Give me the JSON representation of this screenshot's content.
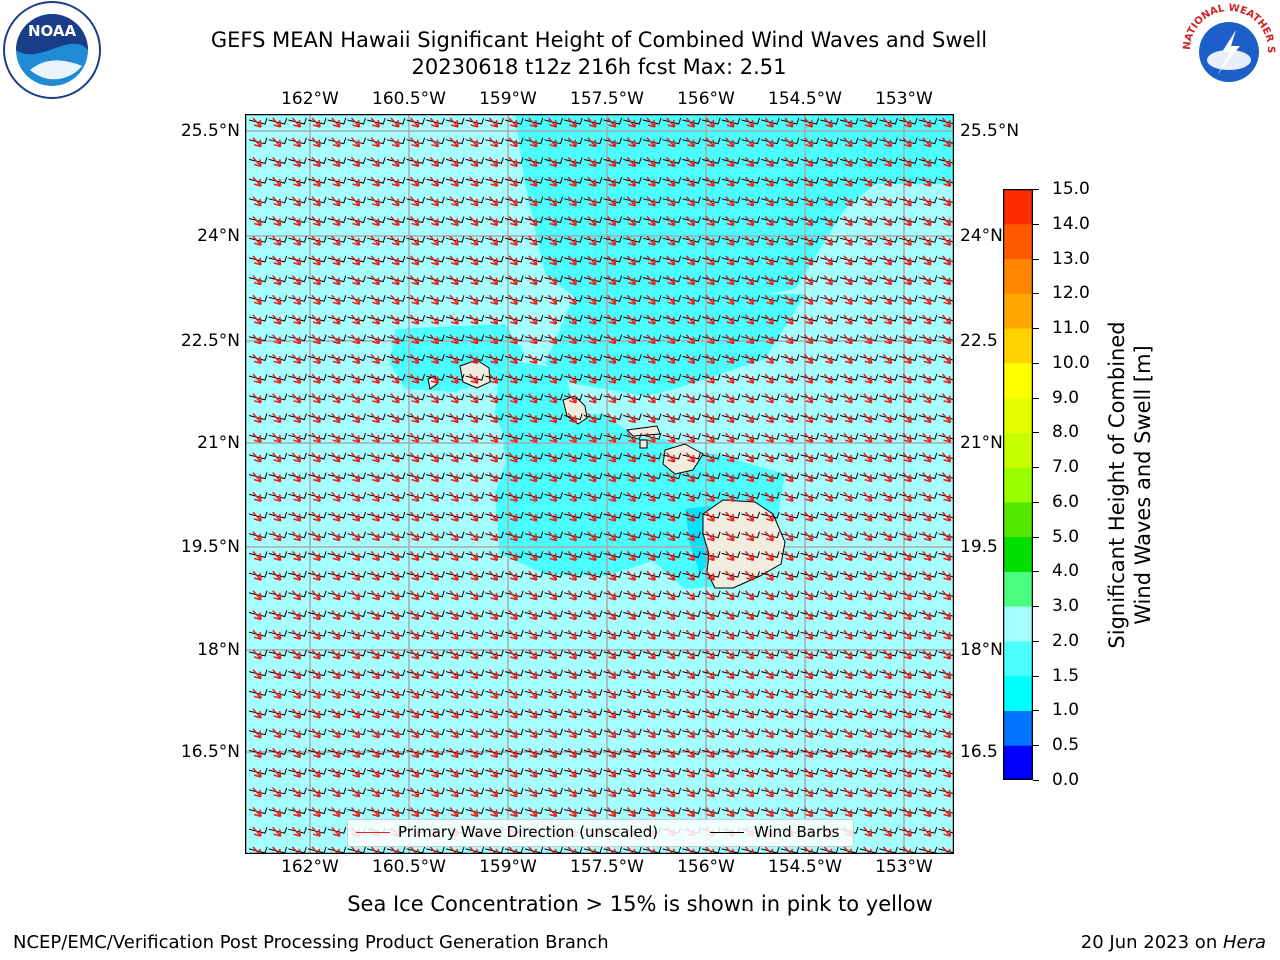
{
  "title": {
    "line1": "GEFS MEAN Hawaii Significant Height of Combined Wind Waves and Swell",
    "line2": "20230618 t12z 216h fcst   Max: 2.51"
  },
  "map": {
    "lon_labels": [
      "162°W",
      "160.5°W",
      "159°W",
      "157.5°W",
      "156°W",
      "154.5°W",
      "153°W"
    ],
    "lat_labels": [
      "25.5°N",
      "24°N",
      "22.5°N",
      "21°N",
      "19.5°N",
      "18°N",
      "16.5°N"
    ],
    "lat_labels_right": [
      "25.5°N",
      "24°N",
      "22.5",
      "21°N",
      "19.5",
      "18°N",
      "16.5"
    ],
    "legend": {
      "wave_direction": "Primary Wave Direction (unscaled)",
      "wind_barbs": "Wind Barbs"
    },
    "colors": {
      "wave_arrow": "#e8201e",
      "wind_barb": "#000000",
      "land": "#f0ede0",
      "gridline": "#aaaaaa"
    }
  },
  "colorbar": {
    "label": "Significant Height of Combined\nWind Waves and Swell [m]",
    "ticks": [
      "0.0",
      "0.5",
      "1.0",
      "1.5",
      "2.0",
      "3.0",
      "4.0",
      "5.0",
      "6.0",
      "7.0",
      "8.0",
      "9.0",
      "10.0",
      "11.0",
      "12.0",
      "13.0",
      "14.0",
      "15.0"
    ],
    "colors": [
      "#0000ff",
      "#0073ff",
      "#00ffff",
      "#4cffff",
      "#a6ffff",
      "#4cff80",
      "#00e000",
      "#55e800",
      "#99ff00",
      "#c8ff00",
      "#e6ff00",
      "#ffff00",
      "#ffd200",
      "#ffa500",
      "#ff8700",
      "#ff5a00",
      "#ff2d00",
      "#ff0000"
    ]
  },
  "notes": {
    "sea_ice": "Sea Ice Concentration > 15% is shown in pink to yellow"
  },
  "footer": {
    "left": "NCEP/EMC/Verification Post Processing Product Generation Branch",
    "date": "20 Jun 2023 on ",
    "machine": "Hera"
  },
  "logos": {
    "noaa": "NOAA",
    "nws": "NATIONAL WEATHER SERVICE"
  }
}
